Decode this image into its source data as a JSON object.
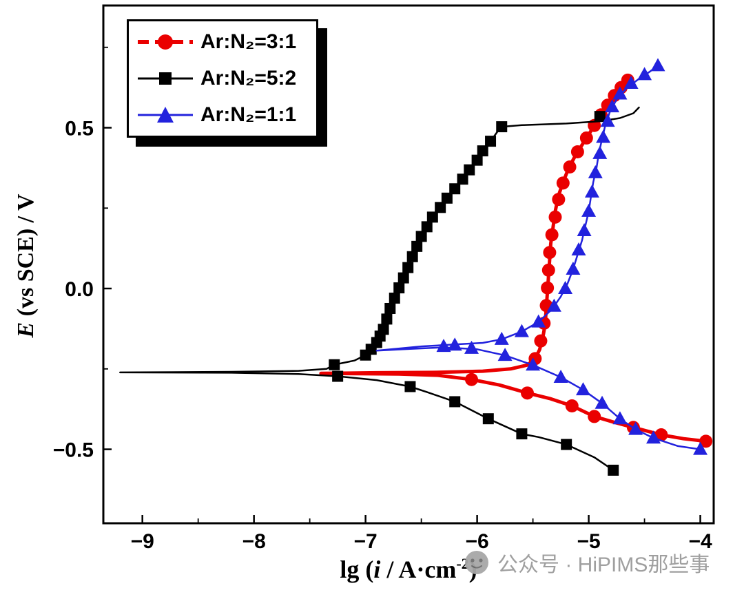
{
  "legend": {
    "items": [
      {
        "label": "Ar:N₂=3:1",
        "color": "#ea0000",
        "marker": "circle"
      },
      {
        "label": "Ar:N₂=5:2",
        "color": "#000000",
        "marker": "square"
      },
      {
        "label": "Ar:N₂=1:1",
        "color": "#2222dd",
        "marker": "triangle"
      }
    ]
  },
  "axes": {
    "x_label": {
      "prefix": "lg (",
      "var": "i",
      "mid": " / A·cm",
      "sup": "-2",
      "suffix": ")"
    },
    "y_label": {
      "var": "E",
      "rest": " (vs SCE) / V"
    }
  },
  "watermark": {
    "text": "公众号 · HiPIMS那些事"
  },
  "chart_data": {
    "type": "line",
    "title": "",
    "xlabel": "lg (i / A·cm⁻²)",
    "ylabel": "E (vs SCE) / V",
    "xlim": [
      -9.35,
      -3.88
    ],
    "ylim": [
      -0.73,
      0.88
    ],
    "grid": false,
    "legend_position": "top-left",
    "xticks": [
      {
        "v": -9,
        "label": "−9"
      },
      {
        "v": -8,
        "label": "−8"
      },
      {
        "v": -7,
        "label": "−7"
      },
      {
        "v": -6,
        "label": "−6"
      },
      {
        "v": -5,
        "label": "−5"
      },
      {
        "v": -4,
        "label": "−4"
      }
    ],
    "yticks": [
      {
        "v": -0.5,
        "label": "−0.5"
      },
      {
        "v": 0.0,
        "label": "0.0"
      },
      {
        "v": 0.5,
        "label": "0.5"
      }
    ],
    "xminor": [
      -8.5,
      -7.5,
      -6.5,
      -5.5,
      -4.5
    ],
    "yminor": [
      -0.25,
      0.25,
      0.75
    ],
    "series": [
      {
        "name": "Ar:N₂=3:1",
        "color": "#ea0000",
        "marker": "circle",
        "line_width": 5,
        "line": [
          [
            -3.95,
            -0.475
          ],
          [
            -4.15,
            -0.467
          ],
          [
            -4.35,
            -0.455
          ],
          [
            -4.6,
            -0.432
          ],
          [
            -4.78,
            -0.415
          ],
          [
            -4.95,
            -0.398
          ],
          [
            -5.15,
            -0.365
          ],
          [
            -5.35,
            -0.342
          ],
          [
            -5.55,
            -0.325
          ],
          [
            -5.8,
            -0.3
          ],
          [
            -6.05,
            -0.283
          ],
          [
            -6.35,
            -0.27
          ],
          [
            -6.7,
            -0.266
          ],
          [
            -7.05,
            -0.265
          ],
          [
            -7.4,
            -0.264
          ],
          [
            -6.9,
            -0.262
          ],
          [
            -6.4,
            -0.261
          ],
          [
            -5.95,
            -0.257
          ],
          [
            -5.7,
            -0.25
          ],
          [
            -5.55,
            -0.238
          ],
          [
            -5.48,
            -0.218
          ],
          [
            -5.44,
            -0.19
          ],
          [
            -5.41,
            -0.15
          ],
          [
            -5.39,
            -0.11
          ],
          [
            -5.38,
            -0.06
          ],
          [
            -5.37,
            -0.01
          ],
          [
            -5.36,
            0.04
          ],
          [
            -5.35,
            0.09
          ],
          [
            -5.34,
            0.14
          ],
          [
            -5.32,
            0.19
          ],
          [
            -5.3,
            0.24
          ],
          [
            -5.27,
            0.29
          ],
          [
            -5.23,
            0.33
          ],
          [
            -5.18,
            0.374
          ],
          [
            -5.12,
            0.413
          ],
          [
            -5.05,
            0.452
          ],
          [
            -4.98,
            0.49
          ],
          [
            -4.92,
            0.523
          ],
          [
            -4.86,
            0.553
          ],
          [
            -4.8,
            0.585
          ],
          [
            -4.74,
            0.613
          ],
          [
            -4.68,
            0.636
          ],
          [
            -4.64,
            0.65
          ]
        ],
        "markers": [
          [
            -3.95,
            -0.475
          ],
          [
            -4.35,
            -0.455
          ],
          [
            -4.6,
            -0.432
          ],
          [
            -4.95,
            -0.398
          ],
          [
            -5.15,
            -0.365
          ],
          [
            -5.55,
            -0.325
          ],
          [
            -6.05,
            -0.283
          ],
          [
            -5.48,
            -0.218
          ],
          [
            -5.43,
            -0.163
          ],
          [
            -5.4,
            -0.108
          ],
          [
            -5.38,
            -0.053
          ],
          [
            -5.37,
            0.002
          ],
          [
            -5.36,
            0.057
          ],
          [
            -5.35,
            0.112
          ],
          [
            -5.33,
            0.167
          ],
          [
            -5.3,
            0.222
          ],
          [
            -5.27,
            0.277
          ],
          [
            -5.23,
            0.328
          ],
          [
            -5.17,
            0.378
          ],
          [
            -5.1,
            0.425
          ],
          [
            -5.02,
            0.468
          ],
          [
            -4.95,
            0.507
          ],
          [
            -4.89,
            0.54
          ],
          [
            -4.83,
            0.57
          ],
          [
            -4.77,
            0.6
          ],
          [
            -4.71,
            0.625
          ],
          [
            -4.65,
            0.648
          ]
        ]
      },
      {
        "name": "Ar:N₂=5:2",
        "color": "#000000",
        "marker": "square",
        "line_width": 2.5,
        "line": [
          [
            -4.78,
            -0.565
          ],
          [
            -4.95,
            -0.525
          ],
          [
            -5.2,
            -0.485
          ],
          [
            -5.45,
            -0.462
          ],
          [
            -5.6,
            -0.452
          ],
          [
            -5.9,
            -0.405
          ],
          [
            -6.2,
            -0.352
          ],
          [
            -6.45,
            -0.322
          ],
          [
            -6.6,
            -0.305
          ],
          [
            -6.9,
            -0.285
          ],
          [
            -7.25,
            -0.273
          ],
          [
            -7.6,
            -0.266
          ],
          [
            -8.2,
            -0.262
          ],
          [
            -9.2,
            -0.261
          ],
          [
            -8.2,
            -0.259
          ],
          [
            -7.6,
            -0.256
          ],
          [
            -7.35,
            -0.25
          ],
          [
            -7.28,
            -0.237
          ],
          [
            -7.1,
            -0.224
          ],
          [
            -7.0,
            -0.207
          ],
          [
            -6.95,
            -0.189
          ],
          [
            -6.9,
            -0.168
          ],
          [
            -6.87,
            -0.148
          ],
          [
            -6.84,
            -0.127
          ],
          [
            -6.81,
            -0.095
          ],
          [
            -6.78,
            -0.062
          ],
          [
            -6.74,
            -0.03
          ],
          [
            -6.7,
            0.002
          ],
          [
            -6.66,
            0.033
          ],
          [
            -6.62,
            0.065
          ],
          [
            -6.58,
            0.099
          ],
          [
            -6.54,
            0.131
          ],
          [
            -6.5,
            0.162
          ],
          [
            -6.45,
            0.192
          ],
          [
            -6.4,
            0.222
          ],
          [
            -6.33,
            0.252
          ],
          [
            -6.27,
            0.281
          ],
          [
            -6.2,
            0.31
          ],
          [
            -6.13,
            0.34
          ],
          [
            -6.07,
            0.369
          ],
          [
            -6.0,
            0.399
          ],
          [
            -5.95,
            0.428
          ],
          [
            -5.88,
            0.458
          ],
          [
            -5.82,
            0.487
          ],
          [
            -5.78,
            0.503
          ],
          [
            -5.6,
            0.508
          ],
          [
            -5.2,
            0.513
          ],
          [
            -4.9,
            0.52
          ],
          [
            -4.72,
            0.53
          ],
          [
            -4.6,
            0.545
          ],
          [
            -4.55,
            0.563
          ]
        ],
        "markers": [
          [
            -4.78,
            -0.565
          ],
          [
            -5.2,
            -0.485
          ],
          [
            -5.6,
            -0.452
          ],
          [
            -5.9,
            -0.405
          ],
          [
            -6.2,
            -0.352
          ],
          [
            -6.6,
            -0.305
          ],
          [
            -7.25,
            -0.273
          ],
          [
            -7.28,
            -0.237
          ],
          [
            -7.0,
            -0.207
          ],
          [
            -6.95,
            -0.189
          ],
          [
            -6.9,
            -0.168
          ],
          [
            -6.87,
            -0.148
          ],
          [
            -6.84,
            -0.127
          ],
          [
            -6.81,
            -0.095
          ],
          [
            -6.78,
            -0.062
          ],
          [
            -6.74,
            -0.03
          ],
          [
            -6.7,
            0.002
          ],
          [
            -6.66,
            0.033
          ],
          [
            -6.62,
            0.065
          ],
          [
            -6.58,
            0.099
          ],
          [
            -6.54,
            0.131
          ],
          [
            -6.5,
            0.162
          ],
          [
            -6.45,
            0.192
          ],
          [
            -6.4,
            0.222
          ],
          [
            -6.33,
            0.252
          ],
          [
            -6.27,
            0.281
          ],
          [
            -6.2,
            0.31
          ],
          [
            -6.13,
            0.34
          ],
          [
            -6.07,
            0.369
          ],
          [
            -6.0,
            0.399
          ],
          [
            -5.95,
            0.428
          ],
          [
            -5.88,
            0.458
          ],
          [
            -5.78,
            0.503
          ],
          [
            -4.9,
            0.535
          ]
        ]
      },
      {
        "name": "Ar:N₂=1:1",
        "color": "#2222dd",
        "marker": "triangle",
        "line_width": 2.5,
        "line": [
          [
            -4.0,
            -0.5
          ],
          [
            -4.2,
            -0.49
          ],
          [
            -4.42,
            -0.465
          ],
          [
            -4.58,
            -0.438
          ],
          [
            -4.72,
            -0.405
          ],
          [
            -4.88,
            -0.357
          ],
          [
            -5.05,
            -0.315
          ],
          [
            -5.25,
            -0.276
          ],
          [
            -5.5,
            -0.238
          ],
          [
            -5.75,
            -0.208
          ],
          [
            -6.0,
            -0.189
          ],
          [
            -6.3,
            -0.183
          ],
          [
            -6.6,
            -0.188
          ],
          [
            -6.9,
            -0.193
          ],
          [
            -6.5,
            -0.18
          ],
          [
            -6.2,
            -0.174
          ],
          [
            -5.95,
            -0.169
          ],
          [
            -5.78,
            -0.158
          ],
          [
            -5.6,
            -0.134
          ],
          [
            -5.45,
            -0.104
          ],
          [
            -5.33,
            -0.065
          ],
          [
            -5.25,
            -0.025
          ],
          [
            -5.19,
            0.015
          ],
          [
            -5.14,
            0.06
          ],
          [
            -5.1,
            0.105
          ],
          [
            -5.06,
            0.15
          ],
          [
            -5.03,
            0.195
          ],
          [
            -5.0,
            0.24
          ],
          [
            -4.98,
            0.285
          ],
          [
            -4.96,
            0.33
          ],
          [
            -4.93,
            0.375
          ],
          [
            -4.91,
            0.42
          ],
          [
            -4.88,
            0.465
          ],
          [
            -4.85,
            0.51
          ],
          [
            -4.81,
            0.55
          ],
          [
            -4.75,
            0.588
          ],
          [
            -4.66,
            0.623
          ],
          [
            -4.55,
            0.652
          ],
          [
            -4.45,
            0.675
          ],
          [
            -4.38,
            0.693
          ]
        ],
        "markers": [
          [
            -4.0,
            -0.5
          ],
          [
            -4.42,
            -0.465
          ],
          [
            -4.58,
            -0.438
          ],
          [
            -4.72,
            -0.405
          ],
          [
            -4.88,
            -0.357
          ],
          [
            -5.05,
            -0.315
          ],
          [
            -5.25,
            -0.276
          ],
          [
            -5.5,
            -0.238
          ],
          [
            -5.75,
            -0.208
          ],
          [
            -6.05,
            -0.186
          ],
          [
            -6.2,
            -0.176
          ],
          [
            -6.3,
            -0.18
          ],
          [
            -5.78,
            -0.158
          ],
          [
            -5.6,
            -0.134
          ],
          [
            -5.45,
            -0.104
          ],
          [
            -5.31,
            -0.055
          ],
          [
            -5.21,
            0.0
          ],
          [
            -5.14,
            0.06
          ],
          [
            -5.09,
            0.12
          ],
          [
            -5.04,
            0.18
          ],
          [
            -5.0,
            0.24
          ],
          [
            -4.97,
            0.3
          ],
          [
            -4.94,
            0.36
          ],
          [
            -4.9,
            0.42
          ],
          [
            -4.87,
            0.47
          ],
          [
            -4.83,
            0.52
          ],
          [
            -4.79,
            0.565
          ],
          [
            -4.72,
            0.605
          ],
          [
            -4.62,
            0.638
          ],
          [
            -4.5,
            0.665
          ],
          [
            -4.38,
            0.693
          ]
        ]
      }
    ]
  }
}
